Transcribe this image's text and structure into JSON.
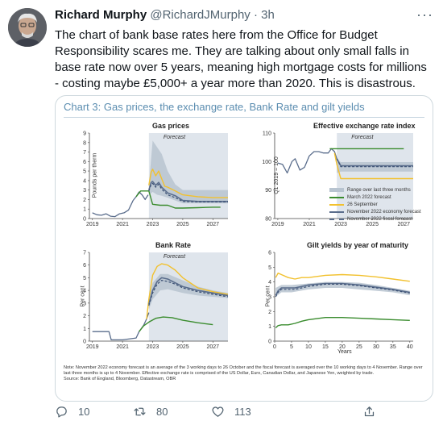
{
  "tweet": {
    "author_name": "Richard Murphy",
    "handle": "@RichardJMurphy",
    "separator": "·",
    "time": "3h",
    "more_icon": "more-icon",
    "text": "The chart of bank base rates here from the Office for Budget Responsibility scares me. They are talking about only small falls in base rate now over 5 years, meaning high mortgage costs for millions - costing maybe £5,000+ a year more than 2020. This is disastrous."
  },
  "card": {
    "title": "Chart 3: Gas prices, the exchange rate, Bank Rate and gilt yields",
    "forecast_label": "Forecast",
    "note": "Note: November 2022 economy forecast is an average of the 3 working days to 26 October and the fiscal forecast is averaged over the 10 working days to 4 November. Range over last three months is up to 4 November. Effective exchange rate is comprised of the US Dollar, Euro, Canadian Dollar, and Japanese Yen, weighted by trade.",
    "source": "Source: Bank of England, Bloomberg, Datastream, OBR",
    "legend": [
      {
        "label": "Range over last three months",
        "style": "band",
        "color": "#b8c4d0"
      },
      {
        "label": "March 2022 forecast",
        "style": "solid",
        "color": "#3a8c2e"
      },
      {
        "label": "26 September",
        "style": "solid",
        "color": "#f2c12e"
      },
      {
        "label": "November 2022 economy forecast",
        "style": "solid",
        "color": "#5a6d8c"
      },
      {
        "label": "November 2022 fiscal forecast",
        "style": "dash",
        "color": "#5a6d8c"
      }
    ]
  },
  "colors": {
    "march": "#3a8c2e",
    "sept": "#f2c12e",
    "nov_economy": "#5a6d8c",
    "nov_fiscal": "#3d5275",
    "range": "#b8c4d0",
    "forecast_shade": "#dfe5ec",
    "title_blue": "#5b8db0"
  },
  "chart_data": [
    {
      "type": "line",
      "title": "Gas prices",
      "ylabel": "Pounds per therm",
      "xlabel": "",
      "xlim": [
        2018.8,
        2028
      ],
      "ylim": [
        0,
        9
      ],
      "xticks": [
        2019,
        2021,
        2023,
        2025,
        2027
      ],
      "yticks": [
        0,
        1,
        2,
        3,
        4,
        5,
        6,
        7,
        8,
        9
      ],
      "forecast_start": 2022.75,
      "series": [
        {
          "key": "history",
          "x": [
            2019,
            2019.3,
            2019.6,
            2019.9,
            2020.2,
            2020.5,
            2020.8,
            2021.1,
            2021.4,
            2021.7,
            2021.9,
            2022.1,
            2022.3,
            2022.5,
            2022.7
          ],
          "values": [
            0.6,
            0.4,
            0.35,
            0.5,
            0.25,
            0.2,
            0.5,
            0.6,
            0.9,
            1.9,
            2.3,
            2.8,
            2.5,
            2.0,
            2.5
          ]
        },
        {
          "key": "march",
          "x": [
            2021.9,
            2022.2,
            2022.5,
            2022.75,
            2023,
            2023.5,
            2024,
            2024.5,
            2025,
            2026,
            2027,
            2027.5
          ],
          "values": [
            2.3,
            2.9,
            2.9,
            2.9,
            1.5,
            1.4,
            1.4,
            1.1,
            1.1,
            1.15,
            1.2,
            1.2
          ]
        },
        {
          "key": "sept",
          "x": [
            2022.75,
            2022.9,
            2023,
            2023.2,
            2023.4,
            2023.6,
            2023.8,
            2024,
            2024.5,
            2025,
            2026,
            2027,
            2028
          ],
          "values": [
            3.5,
            4.9,
            5.2,
            4.5,
            5.0,
            4.2,
            3.4,
            3.3,
            2.9,
            2.5,
            2.3,
            2.2,
            2.2
          ]
        },
        {
          "key": "nov_economy",
          "x": [
            2022.75,
            2022.9,
            2023,
            2023.2,
            2023.4,
            2023.6,
            2024,
            2024.5,
            2025,
            2026,
            2027,
            2028
          ],
          "values": [
            3.0,
            3.8,
            3.9,
            3.5,
            3.8,
            3.3,
            2.7,
            2.4,
            1.9,
            1.8,
            1.8,
            1.8
          ]
        },
        {
          "key": "nov_fiscal",
          "x": [
            2022.75,
            2022.9,
            2023,
            2023.2,
            2023.4,
            2023.6,
            2024,
            2024.5,
            2025,
            2026,
            2027,
            2028
          ],
          "values": [
            2.9,
            3.6,
            3.7,
            3.3,
            3.6,
            3.1,
            2.5,
            2.2,
            1.8,
            1.75,
            1.75,
            1.75
          ]
        }
      ],
      "range_band": {
        "x": [
          2022.75,
          2023,
          2023.3,
          2023.6,
          2024,
          2024.5,
          2025,
          2026,
          2027,
          2028
        ],
        "low": [
          2.5,
          2.8,
          2.5,
          2.4,
          2.2,
          1.9,
          1.6,
          1.6,
          1.6,
          1.6
        ],
        "high": [
          3.5,
          8.2,
          7.5,
          6.8,
          5.0,
          3.6,
          3.0,
          3.0,
          3.0,
          3.0
        ]
      }
    },
    {
      "type": "line",
      "title": "Effective exchange rate index",
      "ylabel": "Q1 2019 = 100",
      "xlabel": "",
      "xlim": [
        2018.8,
        2027.6
      ],
      "ylim": [
        80,
        110
      ],
      "xticks": [
        2019,
        2021,
        2023,
        2025,
        2027
      ],
      "yticks": [
        80,
        90,
        100,
        110
      ],
      "forecast_start": 2022.75,
      "series": [
        {
          "key": "history",
          "x": [
            2019,
            2019.3,
            2019.6,
            2019.9,
            2020.1,
            2020.4,
            2020.7,
            2021,
            2021.3,
            2021.6,
            2021.9,
            2022.2,
            2022.4,
            2022.6,
            2022.75
          ],
          "values": [
            99.5,
            99,
            96,
            100,
            101,
            97,
            98,
            102,
            103.5,
            103.5,
            103,
            103,
            104.5,
            103.5,
            101
          ]
        },
        {
          "key": "march",
          "x": [
            2022.3,
            2022.6,
            2023,
            2024,
            2025,
            2026,
            2027
          ],
          "values": [
            104.5,
            104.5,
            104.5,
            104.5,
            104.5,
            104.5,
            104.5
          ]
        },
        {
          "key": "sept",
          "x": [
            2022.6,
            2022.75,
            2023,
            2024,
            2025,
            2026,
            2027.6
          ],
          "values": [
            103,
            99,
            94,
            94,
            94,
            94,
            94
          ]
        },
        {
          "key": "nov_economy",
          "x": [
            2022.75,
            2023,
            2024,
            2025,
            2026,
            2027.6
          ],
          "values": [
            101,
            98.5,
            98.5,
            98.5,
            98.5,
            98.5
          ]
        },
        {
          "key": "nov_fiscal",
          "x": [
            2022.75,
            2023,
            2024,
            2025,
            2026,
            2027.6
          ],
          "values": [
            101,
            98.2,
            98.2,
            98.2,
            98.2,
            98.2
          ]
        }
      ],
      "range_band": {
        "x": [
          2022.75,
          2023,
          2024,
          2025,
          2026,
          2027.6
        ],
        "low": [
          96,
          96.5,
          96.5,
          96.5,
          96.5,
          96.5
        ],
        "high": [
          101,
          99.8,
          99.8,
          99.8,
          99.8,
          99.8
        ]
      }
    },
    {
      "type": "line",
      "title": "Bank Rate",
      "ylabel": "Per cent",
      "xlabel": "",
      "xlim": [
        2018.8,
        2028
      ],
      "ylim": [
        0,
        7
      ],
      "xticks": [
        2019,
        2021,
        2023,
        2025,
        2027
      ],
      "yticks": [
        0,
        1,
        2,
        3,
        4,
        5,
        6,
        7
      ],
      "forecast_start": 2022.75,
      "series": [
        {
          "key": "history",
          "x": [
            2019,
            2019.5,
            2020.1,
            2020.25,
            2021,
            2021.9,
            2022.1,
            2022.4,
            2022.6,
            2022.75
          ],
          "values": [
            0.75,
            0.75,
            0.75,
            0.1,
            0.1,
            0.25,
            0.75,
            1.25,
            1.75,
            2.25
          ]
        },
        {
          "key": "march",
          "x": [
            2022.1,
            2022.4,
            2022.75,
            2023.2,
            2023.7,
            2024.3,
            2025,
            2026,
            2027
          ],
          "values": [
            0.75,
            1.2,
            1.5,
            1.8,
            1.9,
            1.85,
            1.65,
            1.45,
            1.3
          ]
        },
        {
          "key": "sept",
          "x": [
            2022.6,
            2022.75,
            2023,
            2023.3,
            2023.6,
            2024,
            2024.5,
            2025,
            2026,
            2027,
            2028
          ],
          "values": [
            1.75,
            3.3,
            5.2,
            5.9,
            6.1,
            6.0,
            5.6,
            5.0,
            4.2,
            3.9,
            3.7
          ]
        },
        {
          "key": "nov_economy",
          "x": [
            2022.75,
            2023,
            2023.3,
            2023.6,
            2024,
            2024.5,
            2025,
            2026,
            2027,
            2028
          ],
          "values": [
            2.9,
            4.0,
            4.7,
            5.0,
            4.9,
            4.6,
            4.3,
            4.0,
            3.8,
            3.6
          ]
        },
        {
          "key": "nov_fiscal",
          "x": [
            2022.75,
            2023,
            2023.3,
            2023.6,
            2024,
            2024.5,
            2025,
            2026,
            2027,
            2028
          ],
          "values": [
            2.8,
            3.8,
            4.5,
            4.8,
            4.7,
            4.5,
            4.2,
            3.9,
            3.7,
            3.5
          ]
        }
      ],
      "range_band": {
        "x": [
          2022.75,
          2023,
          2023.5,
          2024,
          2025,
          2026,
          2027,
          2028
        ],
        "low": [
          2.5,
          3.3,
          4.0,
          4.1,
          3.8,
          3.6,
          3.5,
          3.4
        ],
        "high": [
          3.4,
          4.6,
          5.3,
          5.3,
          4.8,
          4.3,
          4.0,
          3.8
        ]
      }
    },
    {
      "type": "line",
      "title": "Gilt yields by year of maturity",
      "ylabel": "Per cent",
      "xlabel": "Years",
      "xlim": [
        0,
        41
      ],
      "ylim": [
        0,
        6
      ],
      "xticks": [
        0,
        5,
        10,
        15,
        20,
        25,
        30,
        35,
        40
      ],
      "yticks": [
        0,
        1,
        2,
        3,
        4,
        5,
        6
      ],
      "forecast_start": null,
      "series": [
        {
          "key": "march",
          "x": [
            0.3,
            1,
            2,
            4,
            6,
            8,
            10,
            15,
            20,
            25,
            30,
            35,
            40
          ],
          "values": [
            0.9,
            1.05,
            1.1,
            1.1,
            1.2,
            1.35,
            1.45,
            1.6,
            1.6,
            1.55,
            1.5,
            1.45,
            1.4
          ]
        },
        {
          "key": "sept",
          "x": [
            0.3,
            1,
            2,
            4,
            6,
            8,
            10,
            15,
            20,
            25,
            30,
            35,
            40
          ],
          "values": [
            4.3,
            4.6,
            4.5,
            4.3,
            4.2,
            4.3,
            4.3,
            4.45,
            4.5,
            4.45,
            4.35,
            4.2,
            4.05
          ]
        },
        {
          "key": "nov_economy",
          "x": [
            0.3,
            1,
            2,
            4,
            6,
            8,
            10,
            15,
            20,
            25,
            30,
            35,
            40
          ],
          "values": [
            3.1,
            3.4,
            3.6,
            3.6,
            3.6,
            3.7,
            3.8,
            3.9,
            3.9,
            3.8,
            3.65,
            3.5,
            3.3
          ]
        },
        {
          "key": "nov_fiscal",
          "x": [
            0.3,
            1,
            2,
            4,
            6,
            8,
            10,
            15,
            20,
            25,
            30,
            35,
            40
          ],
          "values": [
            3.0,
            3.3,
            3.5,
            3.5,
            3.5,
            3.6,
            3.7,
            3.85,
            3.85,
            3.75,
            3.6,
            3.45,
            3.25
          ]
        }
      ],
      "range_band": {
        "x": [
          0.3,
          2,
          5,
          10,
          15,
          20,
          25,
          30,
          35,
          40
        ],
        "low": [
          3.0,
          3.3,
          3.3,
          3.5,
          3.6,
          3.6,
          3.5,
          3.4,
          3.3,
          3.1
        ],
        "high": [
          3.6,
          3.8,
          3.8,
          3.9,
          4.0,
          4.0,
          3.95,
          3.8,
          3.6,
          3.4
        ]
      }
    }
  ],
  "actions": {
    "reply_count": "10",
    "retweet_count": "80",
    "like_count": "113",
    "reply_icon": "reply-icon",
    "retweet_icon": "retweet-icon",
    "like_icon": "heart-icon",
    "share_icon": "share-icon"
  }
}
